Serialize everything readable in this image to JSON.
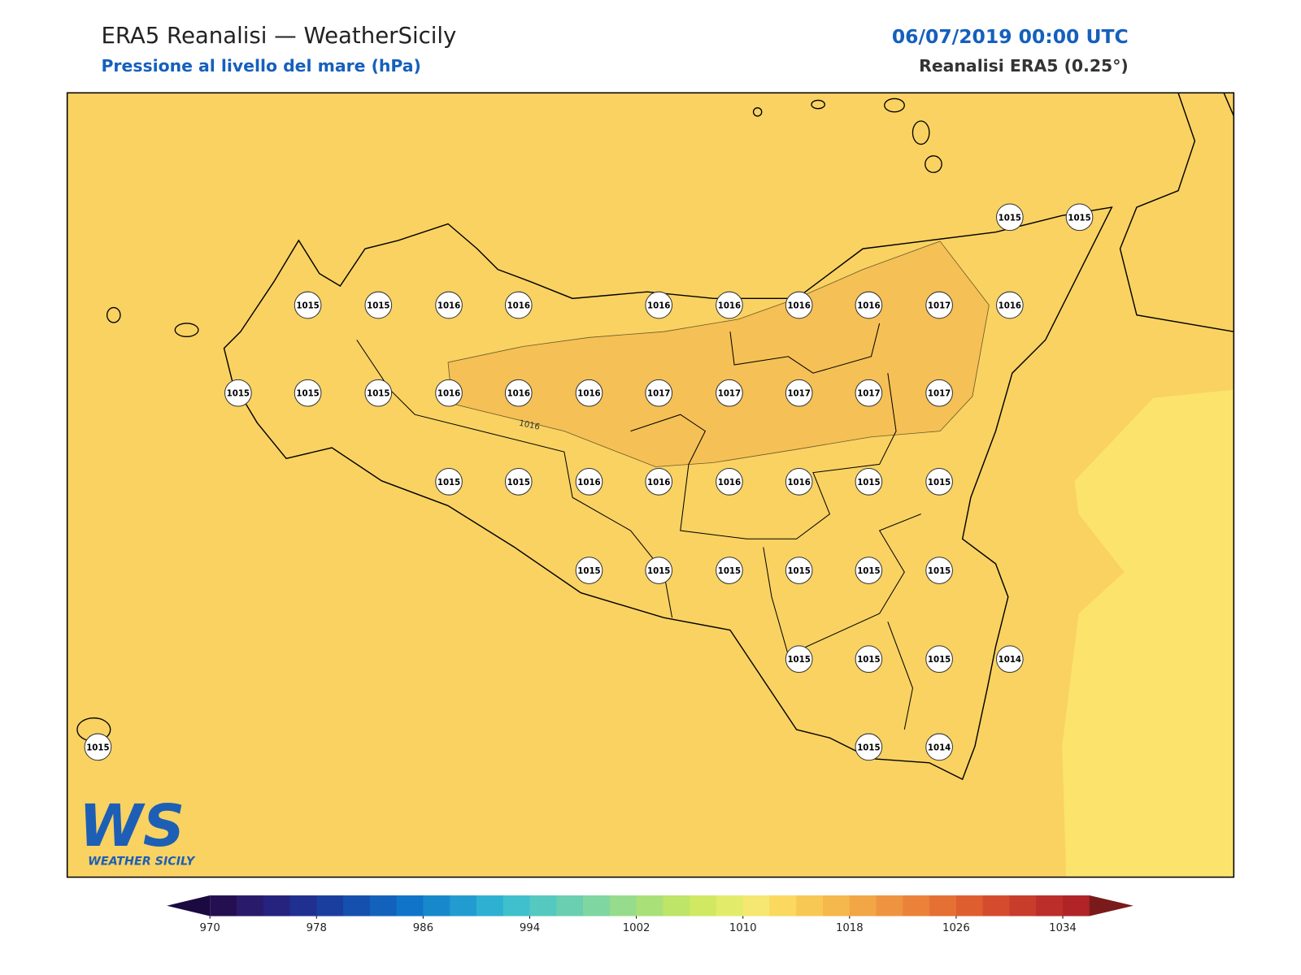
{
  "header": {
    "title": "ERA5 Reanalisi — WeatherSicily",
    "subtitle": "Pressione al livello del mare (hPa)",
    "datetime": "06/07/2019 00:00 UTC",
    "source": "Reanalisi ERA5 (0.25°)"
  },
  "map": {
    "contour_label": "1016",
    "stations": [
      {
        "value": 1015
      },
      {
        "value": 1015
      },
      {
        "value": 1015
      },
      {
        "value": 1015
      },
      {
        "value": 1016
      },
      {
        "value": 1016
      },
      {
        "value": 1016
      },
      {
        "value": 1016
      },
      {
        "value": 1016
      },
      {
        "value": 1016
      },
      {
        "value": 1017
      },
      {
        "value": 1016
      },
      {
        "value": 1015
      },
      {
        "value": 1015
      },
      {
        "value": 1015
      },
      {
        "value": 1016
      },
      {
        "value": 1016
      },
      {
        "value": 1016
      },
      {
        "value": 1017
      },
      {
        "value": 1017
      },
      {
        "value": 1017
      },
      {
        "value": 1017
      },
      {
        "value": 1017
      },
      {
        "value": 1015
      },
      {
        "value": 1015
      },
      {
        "value": 1016
      },
      {
        "value": 1016
      },
      {
        "value": 1016
      },
      {
        "value": 1016
      },
      {
        "value": 1015
      },
      {
        "value": 1015
      },
      {
        "value": 1015
      },
      {
        "value": 1015
      },
      {
        "value": 1015
      },
      {
        "value": 1015
      },
      {
        "value": 1015
      },
      {
        "value": 1015
      },
      {
        "value": 1015
      },
      {
        "value": 1015
      },
      {
        "value": 1015
      },
      {
        "value": 1014
      },
      {
        "value": 1015
      },
      {
        "value": 1014
      },
      {
        "value": 1015
      }
    ]
  },
  "colorbar": {
    "range": [
      970,
      1036
    ],
    "step": 2,
    "ticks": [
      970,
      978,
      986,
      994,
      1002,
      1010,
      1018,
      1026,
      1034
    ],
    "colors": [
      "#241050",
      "#2a1a6a",
      "#25237e",
      "#1f3090",
      "#1a3e9e",
      "#1550ae",
      "#1262bc",
      "#1074c8",
      "#1888cc",
      "#229cd0",
      "#2eb0d2",
      "#40c0cc",
      "#55c8c0",
      "#6acfb0",
      "#80d6a0",
      "#96dc8c",
      "#aae078",
      "#bee468",
      "#d0e862",
      "#e2ec6a",
      "#f6e672",
      "#fbd860",
      "#f8c855",
      "#f5b84c",
      "#f2a645",
      "#ee9440",
      "#ea823a",
      "#e47034",
      "#de5e30",
      "#d44c2e",
      "#c83c2c",
      "#bc2e2a",
      "#b02428"
    ],
    "under_color": "#1a0a40",
    "over_color": "#7a1a1a"
  },
  "logo": {
    "mark": "WS",
    "name": "WEATHER SICILY"
  }
}
